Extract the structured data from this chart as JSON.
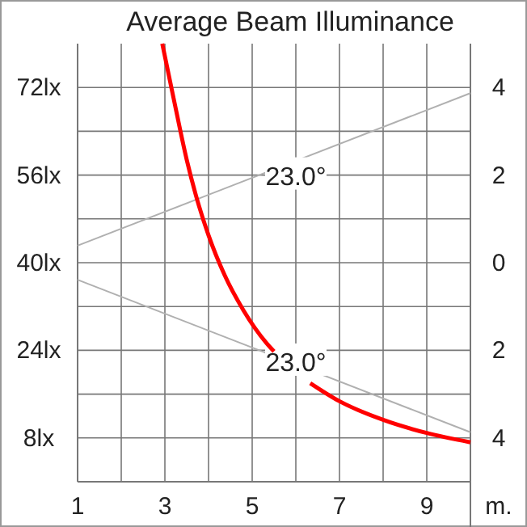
{
  "chart_data": {
    "type": "line",
    "title": "Average Beam Illuminance",
    "xlabel": "m.",
    "xlim": [
      1,
      10
    ],
    "xticks": [
      1,
      {
        "value": 2,
        "label": null
      },
      3,
      {
        "value": 4,
        "label": null
      },
      5,
      {
        "value": 6,
        "label": null
      },
      7,
      {
        "value": 8,
        "label": null
      },
      9,
      {
        "value": 10,
        "label": null
      }
    ],
    "ylim": [
      0,
      80
    ],
    "yticks": [
      {
        "value": 8,
        "label": "8lx"
      },
      {
        "value": 16,
        "label": null
      },
      {
        "value": 24,
        "label": "24lx"
      },
      {
        "value": 32,
        "label": null
      },
      {
        "value": 40,
        "label": "40lx"
      },
      {
        "value": 48,
        "label": null
      },
      {
        "value": 56,
        "label": "56lx"
      },
      {
        "value": 64,
        "label": null
      },
      {
        "value": 72,
        "label": "72lx"
      }
    ],
    "y2lim": [
      -5,
      5
    ],
    "y2ticks": [
      4,
      2,
      0,
      {
        "value": -2,
        "label": "2"
      },
      {
        "value": -4,
        "label": "4"
      }
    ],
    "grid": true,
    "series": [
      {
        "color": "#ff0000",
        "x": [
          2.94,
          3.2,
          3.5,
          3.7,
          4,
          4.37,
          4.8,
          5.33,
          5.5
        ],
        "values": [
          80,
          70,
          58.8,
          52.6,
          45,
          37.7,
          31.3,
          25.3,
          23.8
        ]
      },
      {
        "color": "#ff0000",
        "x": [
          6.33,
          7,
          8,
          9,
          10
        ],
        "values": [
          18,
          14.7,
          11.3,
          8.9,
          7.2
        ]
      },
      {
        "color": "#b0b0b0",
        "axis": "y2",
        "x": [
          1,
          10
        ],
        "values": [
          0.39,
          3.87
        ]
      },
      {
        "color": "#b0b0b0",
        "axis": "y2",
        "x": [
          1,
          10
        ],
        "values": [
          -0.39,
          -3.87
        ]
      }
    ],
    "annotations": [
      {
        "text": "23.0°",
        "x": 6,
        "y": 56
      },
      {
        "text": "23.0°",
        "x": 6,
        "y": 22
      }
    ]
  }
}
